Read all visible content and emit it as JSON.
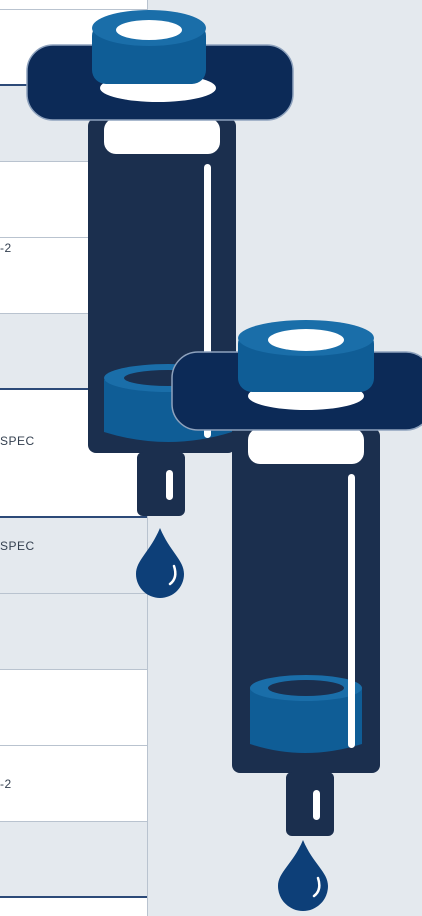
{
  "table": {
    "cells": [
      "-2",
      "SPEC",
      "SPEC",
      "-2"
    ]
  }
}
